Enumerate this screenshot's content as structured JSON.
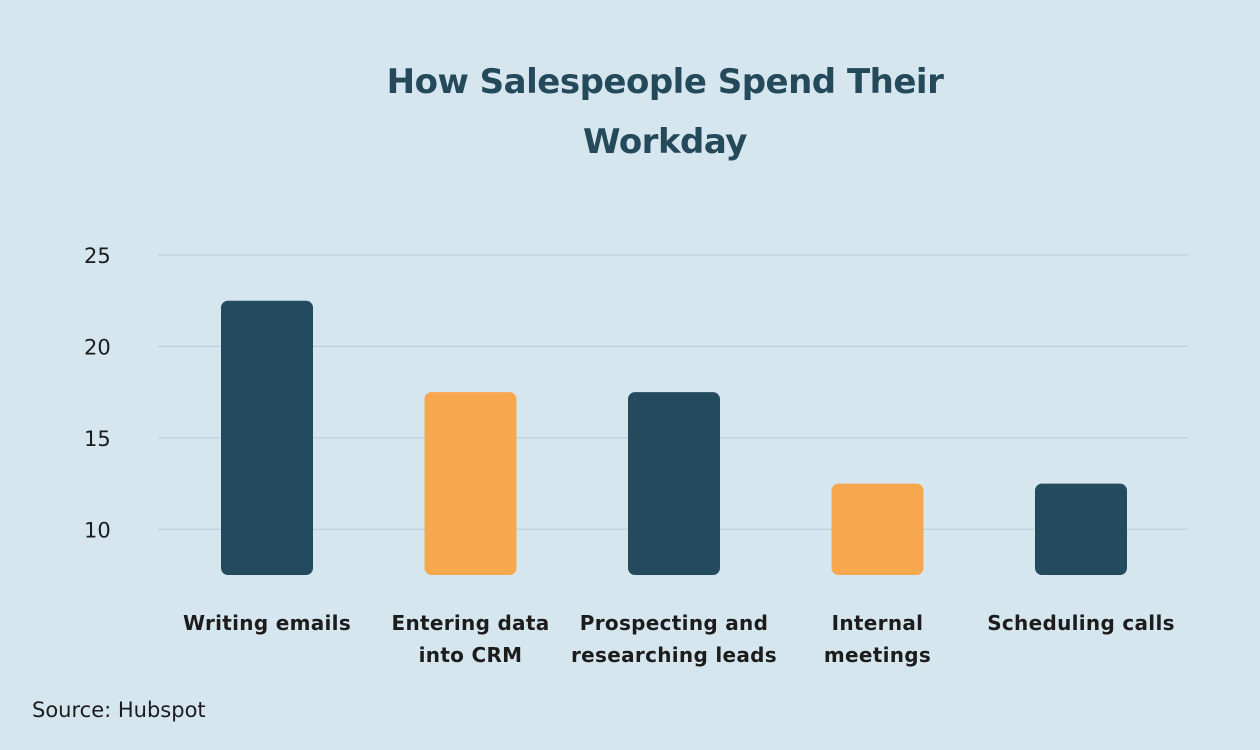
{
  "title_lines": [
    "How Salespeople Spend Their",
    "Workday"
  ],
  "source": "Source: Hubspot",
  "colors": {
    "background": "#d6e6ef",
    "navy": "#234b5d",
    "orange": "#f7a84f",
    "grid": "#b7cbd6",
    "text": "#1c1c1c",
    "title": "#24495b"
  },
  "chart_data": {
    "type": "bar",
    "title": "How Salespeople Spend Their Workday",
    "xlabel": "",
    "ylabel": "",
    "categories": [
      [
        "Writing emails"
      ],
      [
        "Entering data",
        "into CRM"
      ],
      [
        "Prospecting and",
        "researching leads"
      ],
      [
        "Internal",
        "meetings"
      ],
      [
        "Scheduling calls"
      ]
    ],
    "values": [
      22.5,
      17.5,
      17.5,
      12.5,
      12.5
    ],
    "bar_colors": [
      "#234b5d",
      "#f7a84f",
      "#234b5d",
      "#f7a84f",
      "#234b5d"
    ],
    "yticks": [
      10,
      15,
      20,
      25
    ],
    "ylim": [
      7.5,
      25
    ],
    "grid": true,
    "legend": "none"
  }
}
